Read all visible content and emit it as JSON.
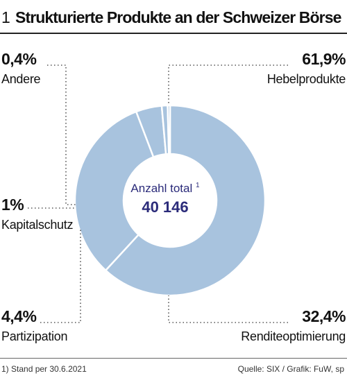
{
  "header": {
    "number": "1",
    "title": "Strukturierte Produkte an der Schweizer Börse"
  },
  "chart_data": {
    "type": "pie",
    "title": "Strukturierte Produkte an der Schweizer Börse",
    "center_label": "Anzahl total",
    "center_label_note": "1",
    "center_value": "40 146",
    "segments": [
      {
        "label": "Hebelprodukte",
        "value": 61.9,
        "display": "61,9%"
      },
      {
        "label": "Renditeoptimierung",
        "value": 32.4,
        "display": "32,4%"
      },
      {
        "label": "Partizipation",
        "value": 4.4,
        "display": "4,4%"
      },
      {
        "label": "Kapitalschutz",
        "value": 1.0,
        "display": "1%"
      },
      {
        "label": "Andere",
        "value": 0.4,
        "display": "0,4%"
      }
    ],
    "colors": {
      "slice": "#a8c3de",
      "separator": "#ffffff",
      "leader": "#555555",
      "center_text": "#2b2b7a"
    }
  },
  "footer": {
    "footnote": "1) Stand per 30.6.2021",
    "source": "Quelle: SIX / Grafik: FuW, sp"
  }
}
